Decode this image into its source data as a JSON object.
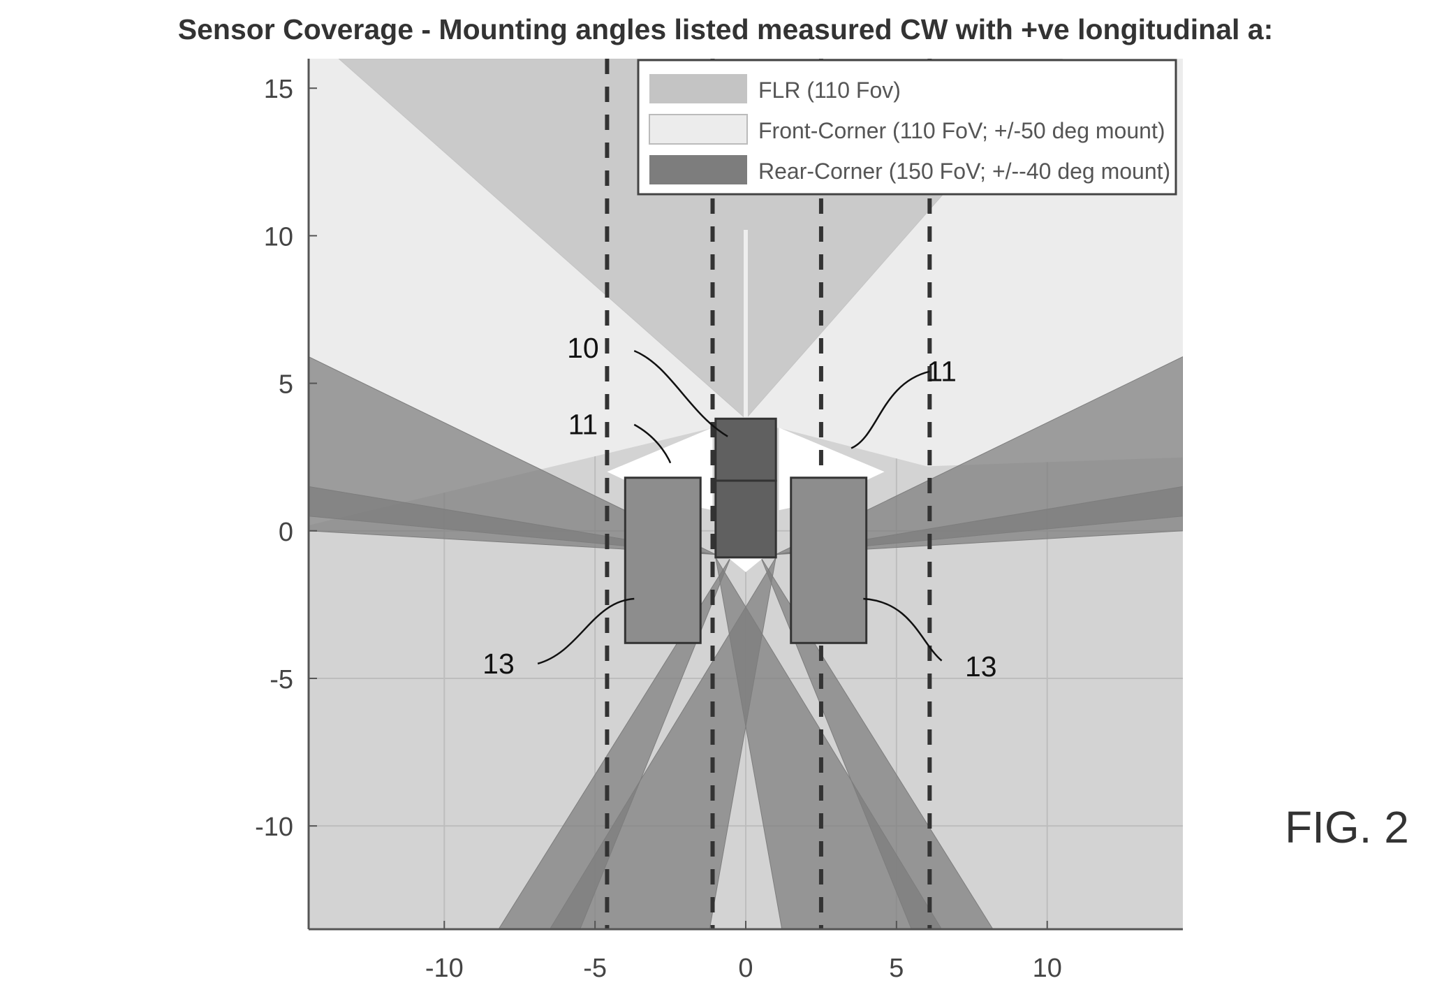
{
  "figure_label": "FIG. 2",
  "chart_data": {
    "type": "area",
    "title": "Sensor Coverage - Mounting angles listed measured CW with +ve longitudinal a:",
    "xlabel": "",
    "ylabel": "",
    "xlim": [
      -14.5,
      14.5
    ],
    "ylim": [
      -13.5,
      16
    ],
    "xticks": [
      -10,
      -5,
      0,
      5,
      10
    ],
    "yticks": [
      15,
      10,
      5,
      0,
      -5,
      -10
    ],
    "grid": true,
    "legend_position": "top-right",
    "colors": {
      "background": "#d3d3d3",
      "front_corner": "#ececec",
      "flr": "#c4c4c4",
      "rear_corner": "#7d7d7d",
      "vehicle_front": "#606060",
      "wheel_box": "#8d8d8d",
      "blind_zone": "#ffffff",
      "dashed_line": "#333333"
    },
    "series": [
      {
        "name": "FLR (110 Fov)",
        "style": "flr",
        "polygons": [
          [
            [
              0,
              3.8
            ],
            [
              -13.5,
              16
            ],
            [
              10.5,
              16
            ]
          ]
        ]
      },
      {
        "name": "Front-Corner (110 FoV; +/-50  deg mount)",
        "style": "front_corner",
        "polygons": [
          [
            [
              -1.1,
              3.5
            ],
            [
              -14.5,
              14
            ],
            [
              -14.5,
              16
            ],
            [
              14.5,
              16
            ],
            [
              14.5,
              2.5
            ],
            [
              6,
              2.2
            ],
            [
              1.1,
              3.5
            ],
            [
              0,
              3.5
            ]
          ],
          [
            [
              -1.1,
              3.5
            ],
            [
              -14.5,
              0.2
            ],
            [
              -14.5,
              14
            ]
          ]
        ]
      },
      {
        "name": "Rear-Corner (150 FoV; +/--40 deg mount)",
        "style": "rear_corner",
        "polygons": [
          [
            [
              -1.0,
              -0.8
            ],
            [
              -14.5,
              5.9
            ],
            [
              -14.5,
              0.5
            ]
          ],
          [
            [
              -1.0,
              -0.8
            ],
            [
              -14.5,
              1.5
            ],
            [
              -14.5,
              0
            ]
          ],
          [
            [
              1.0,
              -0.8
            ],
            [
              14.5,
              5.9
            ],
            [
              14.5,
              0.5
            ]
          ],
          [
            [
              1.0,
              -0.8
            ],
            [
              14.5,
              1.5
            ],
            [
              14.5,
              0
            ]
          ],
          [
            [
              1.0,
              -0.9
            ],
            [
              -6.5,
              -13.5
            ],
            [
              -1.2,
              -13.5
            ]
          ],
          [
            [
              -1.0,
              -0.9
            ],
            [
              6.5,
              -13.5
            ],
            [
              1.2,
              -13.5
            ]
          ],
          [
            [
              -0.5,
              -0.9
            ],
            [
              -8.2,
              -13.5
            ],
            [
              -5.5,
              -13.5
            ]
          ],
          [
            [
              0.5,
              -0.9
            ],
            [
              8.2,
              -13.5
            ],
            [
              5.5,
              -13.5
            ]
          ]
        ]
      }
    ],
    "flr_sensor_line": [
      [
        0,
        3.8
      ],
      [
        0,
        10.2
      ]
    ],
    "blind_zones": [
      [
        [
          -1.1,
          3.5
        ],
        [
          -4.6,
          2.0
        ],
        [
          -2.5,
          1.0
        ],
        [
          -1.1,
          0.7
        ]
      ],
      [
        [
          1.1,
          3.5
        ],
        [
          4.6,
          2.0
        ],
        [
          2.5,
          1.0
        ],
        [
          1.1,
          0.7
        ]
      ],
      [
        [
          -0.6,
          -0.9
        ],
        [
          0.6,
          -0.9
        ],
        [
          0,
          -1.4
        ]
      ]
    ],
    "dashed_lines_x": [
      -4.6,
      -1.1,
      2.5,
      6.1
    ],
    "vehicle": {
      "front_box": {
        "x": [
          -1.0,
          1.0
        ],
        "y": [
          1.7,
          3.8
        ]
      },
      "rear_box": {
        "x": [
          -1.0,
          1.0
        ],
        "y": [
          -0.9,
          1.7
        ]
      }
    },
    "wheel_boxes": [
      {
        "x": [
          -4.0,
          -1.5
        ],
        "y": [
          -3.8,
          1.8
        ]
      },
      {
        "x": [
          1.5,
          4.0
        ],
        "y": [
          -3.8,
          1.8
        ]
      }
    ],
    "annotations": [
      {
        "text": "10",
        "at": [
          -5.4,
          6.2
        ],
        "leader": [
          [
            -3.7,
            6.1
          ],
          [
            -2.5,
            5.6
          ],
          [
            -1.9,
            4.0
          ],
          [
            -0.6,
            3.2
          ]
        ]
      },
      {
        "text": "11",
        "at": [
          -5.4,
          3.6
        ],
        "leader": [
          [
            -3.7,
            3.6
          ],
          [
            -2.8,
            3.1
          ],
          [
            -2.5,
            2.3
          ],
          [
            -2.5,
            2.3
          ]
        ]
      },
      {
        "text": "11",
        "at": [
          6.5,
          5.4
        ],
        "leader": [
          [
            6.1,
            5.4
          ],
          [
            4.5,
            5.0
          ],
          [
            4.4,
            3.2
          ],
          [
            3.5,
            2.8
          ]
        ]
      },
      {
        "text": "13",
        "at": [
          -8.2,
          -4.5
        ],
        "leader": [
          [
            -6.9,
            -4.5
          ],
          [
            -5.5,
            -4.1
          ],
          [
            -5.1,
            -2.4
          ],
          [
            -3.7,
            -2.3
          ]
        ]
      },
      {
        "text": "13",
        "at": [
          7.8,
          -4.6
        ],
        "leader": [
          [
            6.5,
            -4.4
          ],
          [
            5.8,
            -3.8
          ],
          [
            5.5,
            -2.4
          ],
          [
            3.9,
            -2.3
          ]
        ]
      }
    ]
  }
}
